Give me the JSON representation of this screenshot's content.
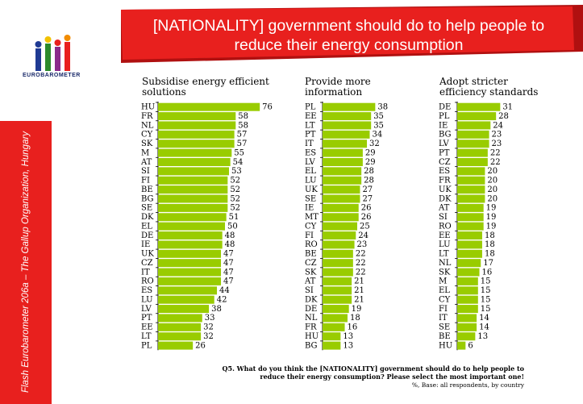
{
  "header": {
    "title_line1": "[NATIONALITY] government should do to help people to",
    "title_line2": "reduce their energy consumption"
  },
  "logo": {
    "text": "EUROBAROMETER"
  },
  "sidebar": {
    "text": "Flash Eurobarometer 206a – The Gallup Organization, Hungary"
  },
  "footnote": {
    "question_line1": "Q5. What do you think the [NATIONALITY] government should do to help people to",
    "question_line2": "reduce their energy consumption? Please select the most important one!",
    "base": "%, Base: all respondents, by country"
  },
  "colors": {
    "bar": "#99cc00",
    "banner": "#e8201e",
    "banner_dark": "#b01010"
  },
  "chart_data": [
    {
      "type": "bar",
      "orientation": "horizontal",
      "title_line1": "Subsidise energy efficient",
      "title_line2": "solutions",
      "categories": [
        "HU",
        "FR",
        "NL",
        "CY",
        "SK",
        "M",
        "AT",
        "SI",
        "FI",
        "BE",
        "BG",
        "SE",
        "DK",
        "EL",
        "DE",
        "IE",
        "UK",
        "CZ",
        "IT",
        "RO",
        "ES",
        "LU",
        "LV",
        "PT",
        "EE",
        "LT",
        "PL"
      ],
      "values": [
        76,
        58,
        58,
        57,
        57,
        55,
        54,
        53,
        52,
        52,
        52,
        52,
        51,
        50,
        48,
        48,
        47,
        47,
        47,
        47,
        44,
        42,
        38,
        33,
        32,
        32,
        26
      ]
    },
    {
      "type": "bar",
      "orientation": "horizontal",
      "title_line1": "Provide more",
      "title_line2": "information",
      "categories": [
        "PL",
        "EE",
        "LT",
        "PT",
        "IT",
        "ES",
        "LV",
        "EL",
        "LU",
        "UK",
        "SE",
        "IE",
        "MT",
        "CY",
        "FI",
        "RO",
        "BE",
        "CZ",
        "SK",
        "AT",
        "SI",
        "DK",
        "DE",
        "NL",
        "FR",
        "HU",
        "BG"
      ],
      "values": [
        38,
        35,
        35,
        34,
        32,
        29,
        29,
        28,
        28,
        27,
        27,
        26,
        26,
        25,
        24,
        23,
        22,
        22,
        22,
        21,
        21,
        21,
        19,
        18,
        16,
        13,
        13
      ]
    },
    {
      "type": "bar",
      "orientation": "horizontal",
      "title_line1": "Adopt stricter",
      "title_line2": "efficiency standards",
      "categories": [
        "DE",
        "PL",
        "IE",
        "BG",
        "LV",
        "PT",
        "CZ",
        "ES",
        "FR",
        "UK",
        "DK",
        "AT",
        "SI",
        "RO",
        "EE",
        "LU",
        "LT",
        "NL",
        "SK",
        "M",
        "EL",
        "CY",
        "FI",
        "IT",
        "SE",
        "BE",
        "HU"
      ],
      "values": [
        31,
        28,
        24,
        23,
        23,
        22,
        22,
        20,
        20,
        20,
        20,
        19,
        19,
        19,
        18,
        18,
        18,
        17,
        16,
        15,
        15,
        15,
        15,
        14,
        14,
        13,
        6
      ]
    }
  ]
}
